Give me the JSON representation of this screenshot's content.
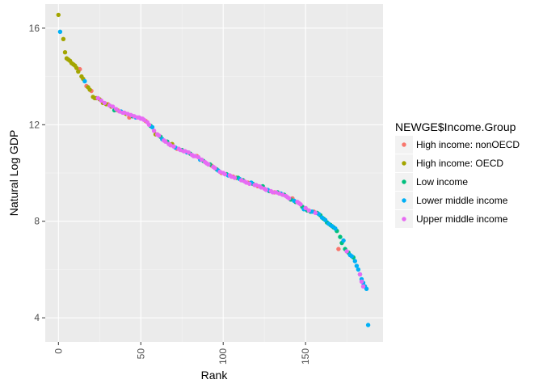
{
  "chart_data": {
    "type": "scatter",
    "xlabel": "Rank",
    "ylabel": "Natural Log GDP",
    "xlim": [
      -8,
      197
    ],
    "ylim": [
      3,
      17
    ],
    "x_ticks": [
      0,
      50,
      100,
      150
    ],
    "y_ticks": [
      4,
      8,
      12,
      16
    ],
    "x_tick_rotation": "vertical",
    "grid": true,
    "legend": {
      "title": "NEWGE$Income.Group",
      "position": "right"
    },
    "series": [
      {
        "name": "High income: nonOECD",
        "color": "#F8766D",
        "x": [
          13,
          17,
          20,
          30,
          36,
          43,
          53,
          72,
          84,
          93,
          99,
          106,
          115,
          121,
          131,
          142,
          155,
          170
        ],
        "y": [
          14.3,
          13.6,
          13.4,
          12.85,
          12.6,
          12.3,
          12.15,
          11.0,
          10.7,
          10.3,
          10.0,
          9.85,
          9.6,
          9.45,
          9.2,
          8.95,
          8.4,
          6.85
        ]
      },
      {
        "name": "High income: OECD",
        "color": "#A3A500",
        "x": [
          0,
          3,
          4,
          5,
          6,
          7,
          8,
          9,
          10,
          11,
          12,
          14,
          15,
          18,
          19,
          21,
          22,
          23,
          25,
          27,
          29,
          32,
          41,
          59,
          69,
          108
        ],
        "y": [
          16.55,
          15.55,
          15.0,
          14.75,
          14.7,
          14.65,
          14.55,
          14.5,
          14.45,
          14.35,
          14.2,
          14.0,
          13.9,
          13.55,
          13.45,
          13.15,
          13.1,
          13.1,
          13.05,
          12.9,
          12.85,
          12.75,
          12.45,
          11.6,
          11.2,
          9.8
        ]
      },
      {
        "name": "Low income",
        "color": "#00BF7D",
        "x": [
          34,
          45,
          56,
          62,
          66,
          75,
          80,
          88,
          92,
          96,
          102,
          109,
          112,
          118,
          124,
          128,
          133,
          137,
          141,
          144,
          148,
          151,
          153,
          157,
          159,
          161,
          163,
          165,
          167,
          169,
          171,
          172,
          174,
          176,
          179
        ],
        "y": [
          12.6,
          12.35,
          11.95,
          11.5,
          11.3,
          10.95,
          10.8,
          10.5,
          10.35,
          10.15,
          9.95,
          9.8,
          9.7,
          9.55,
          9.45,
          9.25,
          9.2,
          9.1,
          8.9,
          8.8,
          8.6,
          8.45,
          8.4,
          8.35,
          8.25,
          8.1,
          7.95,
          7.85,
          7.75,
          7.6,
          7.35,
          7.1,
          6.85,
          6.7,
          6.5
        ]
      },
      {
        "name": "Lower middle income",
        "color": "#00B0F6",
        "x": [
          1,
          16,
          38,
          47,
          57,
          63,
          71,
          78,
          86,
          97,
          103,
          110,
          117,
          127,
          135,
          143,
          149,
          154,
          158,
          160,
          162,
          164,
          166,
          168,
          173,
          177,
          178,
          180,
          181,
          182,
          183,
          184,
          185,
          186,
          187,
          188
        ],
        "y": [
          15.85,
          13.8,
          12.55,
          12.3,
          11.9,
          11.4,
          11.05,
          10.85,
          10.55,
          10.1,
          9.9,
          9.75,
          9.6,
          9.3,
          9.15,
          8.85,
          8.5,
          8.4,
          8.3,
          8.15,
          8.05,
          7.9,
          7.8,
          7.7,
          7.2,
          6.6,
          6.55,
          6.35,
          6.15,
          6.0,
          5.8,
          5.6,
          5.45,
          5.3,
          5.2,
          3.7
        ]
      },
      {
        "name": "Upper middle income",
        "color": "#E76BF3",
        "x": [
          24,
          26,
          28,
          31,
          33,
          35,
          37,
          39,
          40,
          42,
          44,
          46,
          48,
          49,
          50,
          51,
          52,
          54,
          55,
          58,
          60,
          61,
          64,
          65,
          67,
          68,
          70,
          73,
          74,
          76,
          77,
          79,
          81,
          82,
          83,
          85,
          87,
          89,
          90,
          91,
          94,
          95,
          98,
          100,
          101,
          104,
          105,
          107,
          111,
          113,
          114,
          116,
          119,
          120,
          122,
          123,
          125,
          126,
          129,
          130,
          132,
          134,
          136,
          138,
          139,
          140,
          145,
          146,
          147,
          150,
          152,
          156,
          175,
          183,
          184,
          185
        ],
        "y": [
          13.1,
          13.0,
          12.9,
          12.8,
          12.75,
          12.65,
          12.55,
          12.5,
          12.5,
          12.45,
          12.4,
          12.35,
          12.3,
          12.3,
          12.25,
          12.25,
          12.2,
          12.1,
          12.0,
          11.75,
          11.6,
          11.55,
          11.35,
          11.3,
          11.2,
          11.15,
          11.1,
          11.0,
          10.95,
          10.9,
          10.9,
          10.85,
          10.75,
          10.7,
          10.7,
          10.65,
          10.55,
          10.45,
          10.4,
          10.35,
          10.25,
          10.2,
          10.05,
          10.0,
          9.95,
          9.9,
          9.85,
          9.8,
          9.7,
          9.65,
          9.6,
          9.55,
          9.5,
          9.5,
          9.45,
          9.4,
          9.35,
          9.3,
          9.25,
          9.2,
          9.2,
          9.15,
          9.1,
          9.05,
          9.0,
          8.95,
          8.8,
          8.75,
          8.7,
          8.55,
          8.45,
          8.35,
          6.75,
          5.8,
          5.5,
          5.3
        ]
      }
    ]
  }
}
